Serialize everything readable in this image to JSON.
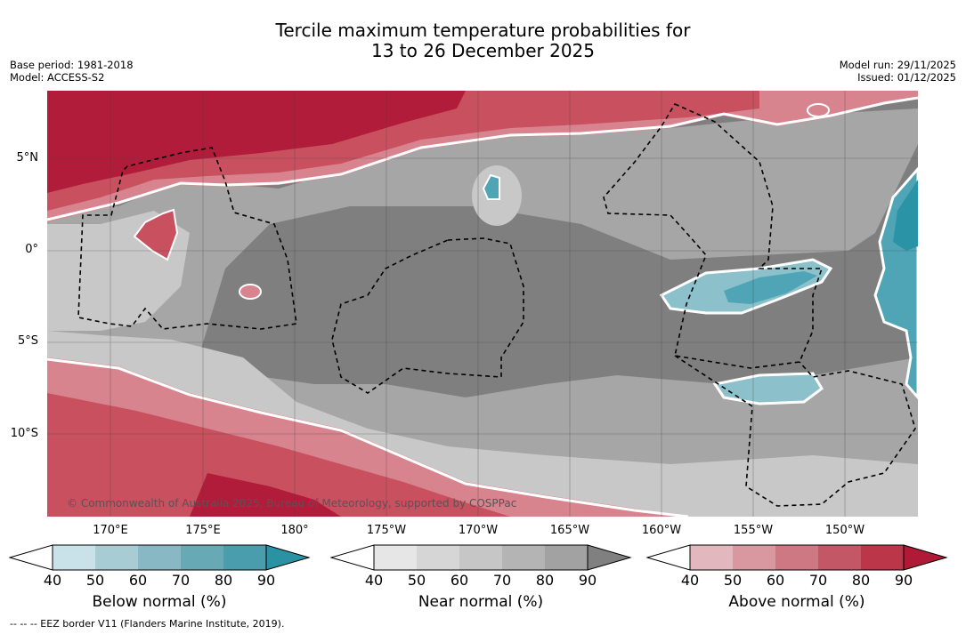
{
  "title": {
    "line1": "Tercile maximum temperature probabilities for",
    "line2": "13 to 26 December 2025"
  },
  "meta": {
    "base_period": "Base period: 1981-2018",
    "model": "Model: ACCESS-S2",
    "model_run": "Model run: 29/11/2025",
    "issued": "Issued: 01/12/2025"
  },
  "map": {
    "copyright": "© Commonwealth of Australia 2025, Bureau of Meteorology, supported by COSPPac",
    "lat_labels": [
      "5°N",
      "0°",
      "5°S",
      "10°S"
    ],
    "lon_labels": [
      "170°E",
      "175°E",
      "180°",
      "175°W",
      "170°W",
      "165°W",
      "160°W",
      "155°W",
      "150°W"
    ],
    "colors": {
      "ocean_near_dark": "#7f7f7f",
      "near_mid": "#a6a6a6",
      "near_light": "#c8c8c8",
      "above_dark": "#b11c3a",
      "above_mid": "#c9505f",
      "above_light": "#d7848f",
      "below_mid": "#4fa5b5",
      "below_dark": "#2a94a6",
      "below_light": "#8cc0cb"
    }
  },
  "colorbars": [
    {
      "label": "Below normal (%)",
      "ticks": [
        "40",
        "50",
        "60",
        "70",
        "80",
        "90"
      ],
      "colors": [
        "#c9e1e8",
        "#a8ccd4",
        "#88b8c3",
        "#68a9b6",
        "#4a9dac",
        "#2a92a3"
      ]
    },
    {
      "label": "Near normal (%)",
      "ticks": [
        "40",
        "50",
        "60",
        "70",
        "80",
        "90"
      ],
      "colors": [
        "#e6e6e6",
        "#d6d6d6",
        "#c6c6c6",
        "#b4b4b4",
        "#a2a2a2",
        "#808080"
      ]
    },
    {
      "label": "Above normal (%)",
      "ticks": [
        "40",
        "50",
        "60",
        "70",
        "80",
        "90"
      ],
      "colors": [
        "#e2b7bd",
        "#d9979f",
        "#cd7882",
        "#c45766",
        "#bb3649",
        "#b01a36"
      ]
    }
  ],
  "footer": {
    "eez_note": "--  --  -- EEZ border V11 (Flanders Marine Institute, 2019)."
  }
}
